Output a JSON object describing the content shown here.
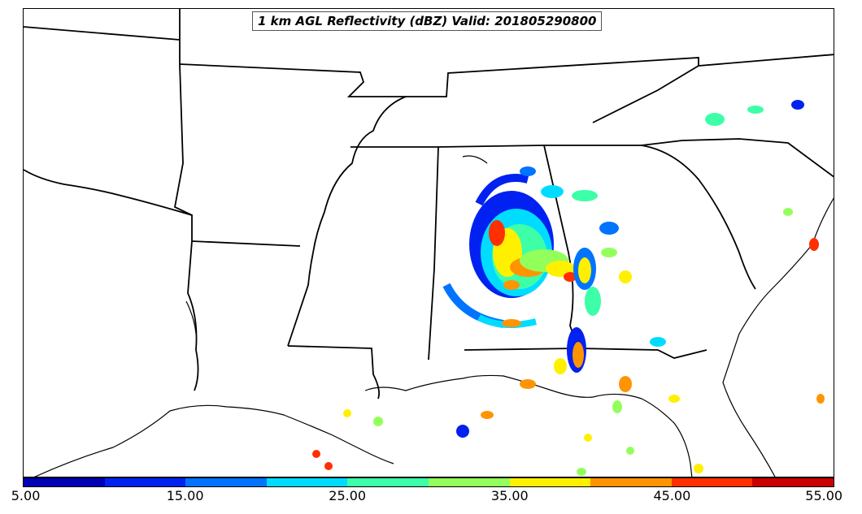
{
  "title": "1 km AGL Reflectivity (dBZ) Valid: 201805290800",
  "colorbar": {
    "ticks": [
      "5.00",
      "15.00",
      "25.00",
      "35.00",
      "45.00",
      "55.00"
    ],
    "colors": [
      "#0000b4",
      "#0021f0",
      "#0073ff",
      "#00dcff",
      "#3cffa8",
      "#93ff5b",
      "#fff000",
      "#ff9400",
      "#ff2f00",
      "#c80000"
    ],
    "range": [
      5,
      55
    ]
  },
  "colors": {
    "boundary": "#000000",
    "background": "#ffffff"
  }
}
